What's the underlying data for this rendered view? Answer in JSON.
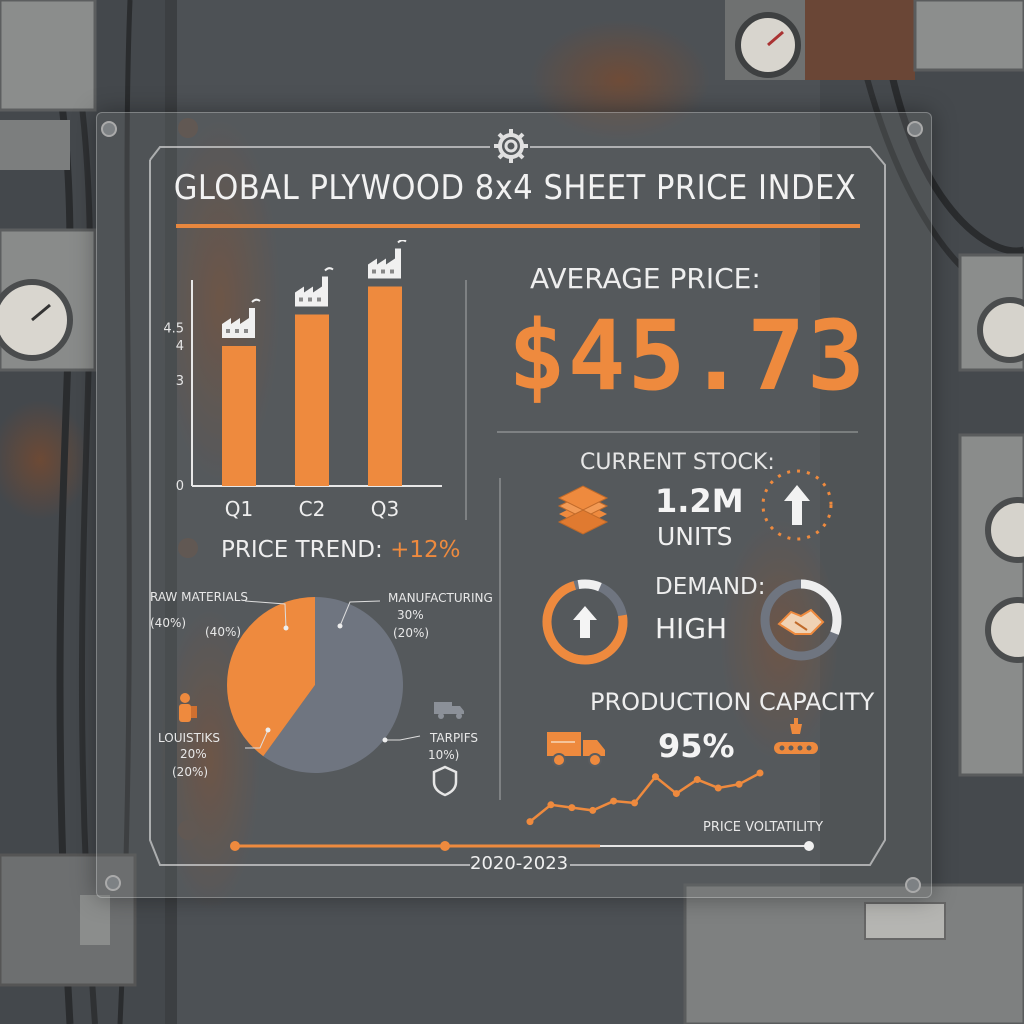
{
  "title": "GLOBAL PLYWOOD 8x4 SHEET PRICE INDEX",
  "colors": {
    "accent": "#ee8a3e",
    "slate": "#6f7580",
    "text": "#eeeeee"
  },
  "chart_data": [
    {
      "type": "bar",
      "categories": [
        "Q1",
        "C2",
        "Q3"
      ],
      "values": [
        4,
        4.9,
        5.7
      ],
      "yticks": [
        "0",
        "3",
        "4",
        "4.5"
      ],
      "ylim": [
        0,
        6
      ],
      "bar_icon": "factory-icon",
      "caption": "PRICE TREND:",
      "caption_value": "+12%"
    },
    {
      "type": "pie",
      "slices": [
        {
          "label": "RAW MATERIALS",
          "value": 40,
          "sub1": "(40%)",
          "inner": "(40%)"
        },
        {
          "label": "MANUFACTURING",
          "value": 60,
          "sub1": "30%",
          "sub2": "(20%)"
        }
      ],
      "annotations": [
        {
          "label": "LOUISTIKS",
          "sub1": "20%",
          "sub2": "(20%)",
          "icon": "worker-icon"
        },
        {
          "label": "TARPIFS",
          "sub1": "10%)",
          "icon": "truck-icon"
        }
      ]
    },
    {
      "type": "line",
      "title": "PRICE VOLTATILITY",
      "values": [
        10,
        28,
        25,
        22,
        32,
        30,
        58,
        40,
        55,
        46,
        50,
        62
      ],
      "range_label": "2020-2023"
    }
  ],
  "kpis": {
    "average_label": "AVERAGE PRICE:",
    "average_value": "$45.73",
    "stock_label": "CURRENT STOCK:",
    "stock_value": "1.2M",
    "stock_unit": "UNITS",
    "demand_label": "DEMAND:",
    "demand_value": "HIGH",
    "capacity_label": "PRODUCTION CAPACITY",
    "capacity_value": "95%"
  },
  "icons": [
    "gear-icon",
    "lumber-stack-icon",
    "arrow-up-icon",
    "handshake-icon",
    "truck-icon",
    "conveyor-icon",
    "shield-icon"
  ]
}
